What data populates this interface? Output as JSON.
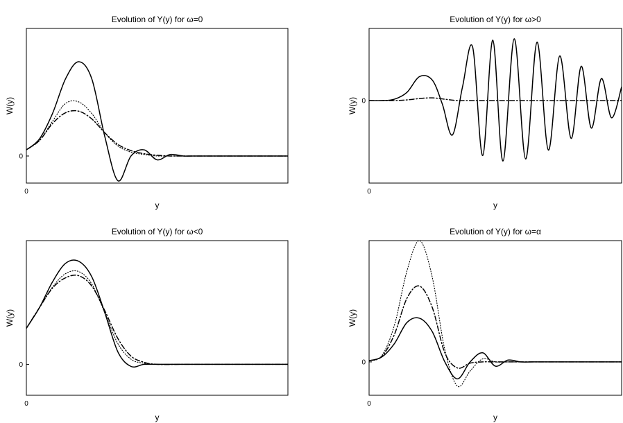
{
  "chart_data": [
    {
      "type": "line",
      "title": "Evolution of Y(y) for ω=0",
      "xlabel": "y",
      "ylabel": "W(y)",
      "xticks": [
        "0"
      ],
      "yticks": [
        "0"
      ],
      "xlim": [
        0,
        10
      ],
      "ylim": [
        -0.35,
        1.65
      ],
      "grid": false,
      "series": [
        {
          "style": "solid",
          "x": [
            0,
            0.5,
            1,
            1.5,
            2,
            2.5,
            3,
            3.5,
            4,
            4.5,
            5,
            5.5,
            6,
            6.5,
            7,
            8,
            9,
            10
          ],
          "y": [
            0.08,
            0.22,
            0.55,
            1.0,
            1.22,
            1.0,
            0.25,
            -0.32,
            0.0,
            0.08,
            -0.05,
            0.02,
            0.0,
            0.0,
            0.0,
            0.0,
            0.0,
            0.0
          ]
        },
        {
          "style": "dotted",
          "x": [
            0,
            0.5,
            1,
            1.5,
            2,
            2.5,
            3,
            3.5,
            4,
            4.5,
            5,
            5.5,
            6,
            7,
            8,
            9,
            10
          ],
          "y": [
            0.08,
            0.2,
            0.45,
            0.68,
            0.7,
            0.55,
            0.3,
            0.13,
            0.05,
            0.02,
            0.0,
            0.0,
            0.0,
            0.0,
            0.0,
            0.0,
            0.0
          ]
        },
        {
          "style": "dashdot",
          "x": [
            0,
            0.5,
            1,
            1.5,
            2,
            2.5,
            3,
            3.5,
            4,
            4.5,
            5,
            5.5,
            6,
            7,
            8,
            9,
            10
          ],
          "y": [
            0.08,
            0.2,
            0.42,
            0.56,
            0.58,
            0.48,
            0.3,
            0.15,
            0.07,
            0.03,
            0.01,
            0.0,
            0.0,
            0.0,
            0.0,
            0.0,
            0.0
          ]
        }
      ]
    },
    {
      "type": "line",
      "title": "Evolution of Y(y) for ω>0",
      "xlabel": "y",
      "ylabel": "W(y)",
      "xticks": [
        "0"
      ],
      "yticks": [
        "0"
      ],
      "xlim": [
        0,
        10
      ],
      "ylim": [
        -1.2,
        1.05
      ],
      "grid": false,
      "series": [
        {
          "style": "solid",
          "x": [
            0,
            0.5,
            1,
            1.5,
            2,
            2.5,
            2.9,
            3.3,
            3.7,
            4.1,
            4.5,
            4.9,
            5.3,
            5.75,
            6.2,
            6.65,
            7.1,
            7.55,
            8.0,
            8.4,
            8.8,
            9.2,
            9.6,
            10
          ],
          "y": [
            0.0,
            0.0,
            0.02,
            0.12,
            0.35,
            0.3,
            -0.05,
            -0.5,
            0.2,
            0.78,
            -0.8,
            0.88,
            -0.88,
            0.9,
            -0.85,
            0.85,
            -0.72,
            0.65,
            -0.55,
            0.5,
            -0.4,
            0.32,
            -0.25,
            0.2
          ]
        },
        {
          "style": "dashdot",
          "x": [
            0,
            0.5,
            1,
            1.5,
            2,
            2.5,
            3,
            3.5,
            4,
            5,
            6,
            7,
            8,
            9,
            10
          ],
          "y": [
            0.0,
            0.0,
            0.0,
            0.01,
            0.03,
            0.04,
            0.02,
            0.0,
            0.0,
            0.0,
            0.0,
            0.0,
            0.0,
            0.0,
            0.0
          ]
        }
      ]
    },
    {
      "type": "line",
      "title": "Evolution of Y(y) for ω<0",
      "xlabel": "y",
      "ylabel": "W(y)",
      "xticks": [
        "0"
      ],
      "yticks": [
        "0"
      ],
      "xlim": [
        0,
        10
      ],
      "ylim": [
        -0.3,
        1.2
      ],
      "grid": false,
      "series": [
        {
          "style": "solid",
          "x": [
            0,
            0.5,
            1,
            1.5,
            2,
            2.5,
            3,
            3.5,
            4,
            4.5,
            5,
            6,
            7,
            8,
            9,
            10
          ],
          "y": [
            0.35,
            0.55,
            0.8,
            0.98,
            1.0,
            0.85,
            0.5,
            0.12,
            -0.02,
            0.0,
            0.0,
            0.0,
            0.0,
            0.0,
            0.0,
            0.0
          ]
        },
        {
          "style": "dotted",
          "x": [
            0,
            0.5,
            1,
            1.5,
            2,
            2.5,
            3,
            3.5,
            4,
            4.5,
            5,
            6,
            7,
            8,
            9,
            10
          ],
          "y": [
            0.35,
            0.55,
            0.75,
            0.88,
            0.9,
            0.78,
            0.5,
            0.2,
            0.05,
            0.01,
            0.0,
            0.0,
            0.0,
            0.0,
            0.0,
            0.0
          ]
        },
        {
          "style": "dashdot",
          "x": [
            0,
            0.5,
            1,
            1.5,
            2,
            2.5,
            3,
            3.5,
            4,
            4.5,
            5,
            6,
            7,
            8,
            9,
            10
          ],
          "y": [
            0.35,
            0.55,
            0.74,
            0.84,
            0.86,
            0.76,
            0.52,
            0.25,
            0.08,
            0.02,
            0.0,
            0.0,
            0.0,
            0.0,
            0.0,
            0.0
          ]
        }
      ]
    },
    {
      "type": "line",
      "title": "Evolution of Y(y) for ω=α",
      "xlabel": "y",
      "ylabel": "W(y)",
      "xticks": [
        "0"
      ],
      "yticks": [
        "0"
      ],
      "xlim": [
        0,
        10
      ],
      "ylim": [
        -0.55,
        2.0
      ],
      "grid": false,
      "series": [
        {
          "style": "solid",
          "x": [
            0,
            0.5,
            1,
            1.5,
            2,
            2.5,
            3,
            3.5,
            4,
            4.5,
            5,
            5.5,
            6,
            6.5,
            7,
            8,
            9,
            10
          ],
          "y": [
            0.02,
            0.08,
            0.3,
            0.65,
            0.72,
            0.5,
            0.0,
            -0.28,
            0.0,
            0.15,
            -0.07,
            0.03,
            0.0,
            0.0,
            0.0,
            0.0,
            0.0,
            0.0
          ]
        },
        {
          "style": "dotted",
          "x": [
            0,
            0.5,
            1,
            1.5,
            2,
            2.5,
            3,
            3.5,
            4,
            4.5,
            5,
            5.5,
            6,
            7,
            8,
            9,
            10
          ],
          "y": [
            0.02,
            0.1,
            0.6,
            1.5,
            2.0,
            1.4,
            0.2,
            -0.4,
            -0.15,
            0.05,
            0.0,
            0.0,
            0.0,
            0.0,
            0.0,
            0.0,
            0.0
          ]
        },
        {
          "style": "dashdot",
          "x": [
            0,
            0.5,
            1,
            1.5,
            2,
            2.5,
            3,
            3.5,
            4,
            4.5,
            5,
            6,
            7,
            8,
            9,
            10
          ],
          "y": [
            0.02,
            0.09,
            0.45,
            1.05,
            1.25,
            0.9,
            0.15,
            -0.1,
            -0.02,
            0.0,
            0.0,
            0.0,
            0.0,
            0.0,
            0.0,
            0.0
          ]
        }
      ]
    }
  ]
}
